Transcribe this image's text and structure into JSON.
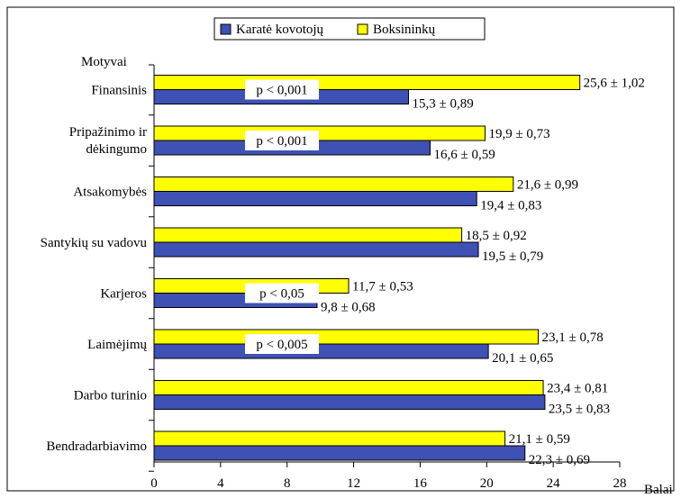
{
  "chart_data": {
    "type": "bar",
    "orientation": "horizontal",
    "y_axis_title": "Motyvai",
    "x_axis_title": "Balai",
    "xlim": [
      0,
      28
    ],
    "x_ticks": [
      0,
      4,
      8,
      12,
      16,
      20,
      24,
      28
    ],
    "grid": false,
    "legend_position": "top",
    "categories": [
      [
        "Finansinis"
      ],
      [
        "Pripažinimo ir",
        "dėkingumo"
      ],
      [
        "Atsakomybės"
      ],
      [
        "Santykių su vadovu"
      ],
      [
        "Karjeros"
      ],
      [
        "Laimėjimų"
      ],
      [
        "Darbo turinio"
      ],
      [
        "Bendradarbiavimo"
      ]
    ],
    "series": [
      {
        "name": "Boksininkų",
        "color": "#ffff00",
        "values": [
          25.6,
          19.9,
          21.6,
          18.5,
          11.7,
          23.1,
          23.4,
          21.1
        ],
        "labels": [
          "25,6 ± 1,02",
          "19,9 ± 0,73",
          "21,6 ± 0,99",
          "18,5 ± 0,92",
          "11,7 ± 0,53",
          "23,1 ± 0,78",
          "23,4 ± 0,81",
          "21,1 ± 0,59"
        ]
      },
      {
        "name": "Karatė kovotojų",
        "color": "#3f51b5",
        "values": [
          15.3,
          16.6,
          19.4,
          19.5,
          9.8,
          20.1,
          23.5,
          22.3
        ],
        "labels": [
          "15,3 ± 0,89",
          "16,6 ± 0,59",
          "19,4 ± 0,83",
          "19,5 ± 0,79",
          "9,8 ± 0,68",
          "20,1 ± 0,65",
          "23,5 ± 0,83",
          "22,3 ± 0,69"
        ]
      }
    ],
    "legend_order": [
      "Karatė kovotojų",
      "Boksininkų"
    ],
    "annotations": [
      {
        "category_index": 0,
        "text": "p < 0,001"
      },
      {
        "category_index": 1,
        "text": "p < 0,001"
      },
      {
        "category_index": 4,
        "text": "p < 0,05"
      },
      {
        "category_index": 5,
        "text": "p < 0,005"
      }
    ]
  }
}
